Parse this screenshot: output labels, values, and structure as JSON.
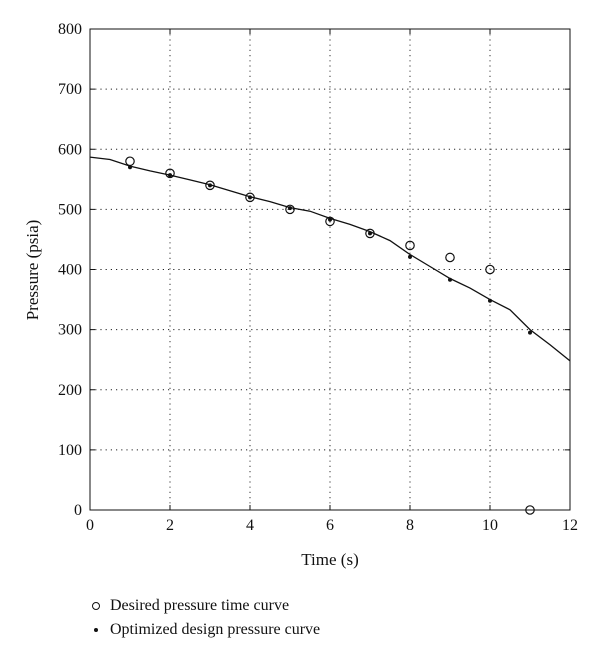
{
  "chart_data": {
    "type": "line",
    "xlabel": "Time (s)",
    "ylabel": "Pressure (psia)",
    "xlim": [
      0,
      12
    ],
    "ylim": [
      0,
      800
    ],
    "xticks": [
      0,
      2,
      4,
      6,
      8,
      10,
      12
    ],
    "yticks": [
      0,
      100,
      200,
      300,
      400,
      500,
      600,
      700,
      800
    ],
    "grid": true,
    "legend_position": "bottom",
    "series": [
      {
        "name": "Desired pressure time curve",
        "marker": "circle",
        "x": [
          1,
          2,
          3,
          4,
          5,
          6,
          7,
          8,
          9,
          10,
          11
        ],
        "y": [
          580,
          560,
          540,
          520,
          500,
          480,
          460,
          440,
          420,
          400,
          0
        ]
      },
      {
        "name": "Optimized design pressure curve",
        "marker": "dot",
        "x": [
          1,
          2,
          3,
          4,
          5,
          6,
          7,
          8,
          9,
          10,
          11
        ],
        "y": [
          570,
          557,
          540,
          520,
          502,
          483,
          460,
          421,
          383,
          348,
          295
        ]
      },
      {
        "marker": "none",
        "line": true,
        "x": [
          0,
          0.5,
          1,
          1.5,
          2,
          2.5,
          3,
          3.5,
          4,
          4.5,
          5,
          5.5,
          6,
          6.5,
          7,
          7.5,
          8,
          8.5,
          9,
          9.5,
          10,
          10.5,
          11,
          11.5,
          12
        ],
        "y": [
          587,
          583,
          572,
          564,
          557,
          549,
          541,
          531,
          521,
          513,
          503,
          497,
          485,
          475,
          463,
          448,
          425,
          405,
          385,
          369,
          350,
          333,
          300,
          275,
          248
        ]
      }
    ]
  }
}
